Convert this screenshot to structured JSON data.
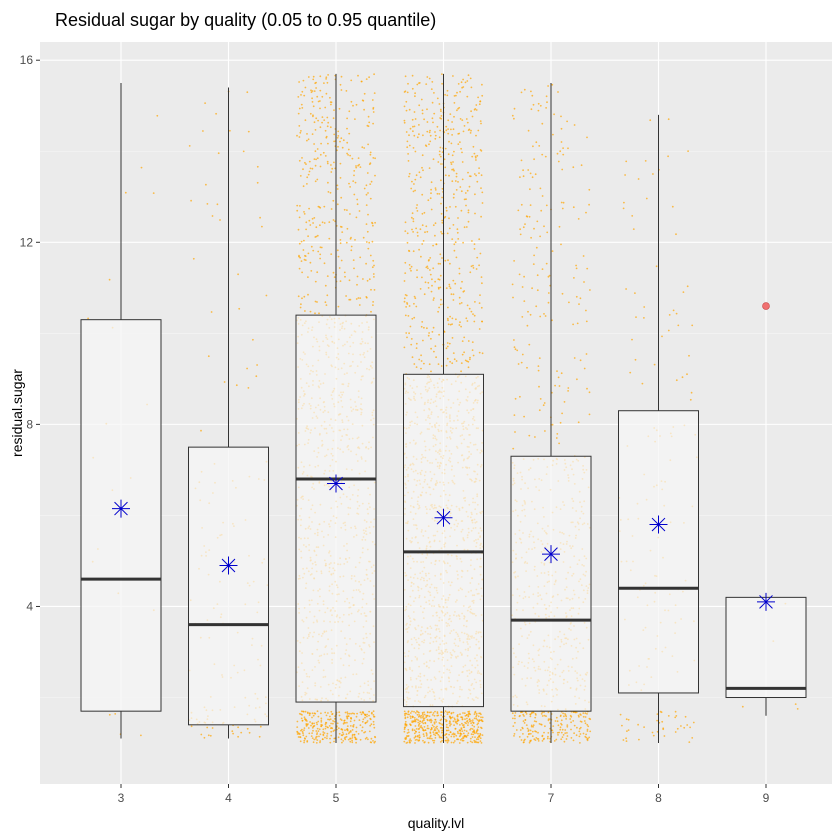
{
  "chart_data": {
    "type": "boxplot",
    "title": "Residual sugar by quality (0.05 to 0.95 quantile)",
    "xlabel": "quality.lvl",
    "ylabel": "residual.sugar",
    "categories": [
      "3",
      "4",
      "5",
      "6",
      "7",
      "8",
      "9"
    ],
    "ylim": [
      0.1,
      16.4
    ],
    "yticks": [
      4,
      8,
      12,
      16
    ],
    "ytick_labels": [
      "4",
      "8",
      "12",
      "16"
    ],
    "grid": true,
    "legend": "none",
    "boxes": [
      {
        "category": "3",
        "whisker_low": 1.1,
        "q1": 1.7,
        "median": 4.6,
        "q3": 10.3,
        "whisker_high": 15.5,
        "mean": 6.15
      },
      {
        "category": "4",
        "whisker_low": 1.1,
        "q1": 1.4,
        "median": 3.6,
        "q3": 7.5,
        "whisker_high": 15.4,
        "mean": 4.9
      },
      {
        "category": "5",
        "whisker_low": 1.0,
        "q1": 1.9,
        "median": 6.8,
        "q3": 10.4,
        "whisker_high": 15.7,
        "mean": 6.7
      },
      {
        "category": "6",
        "whisker_low": 1.0,
        "q1": 1.8,
        "median": 5.2,
        "q3": 9.1,
        "whisker_high": 15.7,
        "mean": 5.95
      },
      {
        "category": "7",
        "whisker_low": 1.0,
        "q1": 1.7,
        "median": 3.7,
        "q3": 7.3,
        "whisker_high": 15.5,
        "mean": 5.15
      },
      {
        "category": "8",
        "whisker_low": 1.0,
        "q1": 2.1,
        "median": 4.4,
        "q3": 8.3,
        "whisker_high": 14.8,
        "mean": 5.8
      },
      {
        "category": "9",
        "whisker_low": 1.6,
        "q1": 2.0,
        "median": 2.2,
        "q3": 4.2,
        "whisker_high": 4.2,
        "mean": 4.1
      }
    ],
    "outliers": [
      {
        "category": "9",
        "value": 10.6
      }
    ],
    "jitter_density": [
      {
        "category": "3",
        "n": 20
      },
      {
        "category": "4",
        "n": 150
      },
      {
        "category": "5",
        "n": 1400
      },
      {
        "category": "6",
        "n": 2000
      },
      {
        "category": "7",
        "n": 800
      },
      {
        "category": "8",
        "n": 160
      },
      {
        "category": "9",
        "n": 5
      }
    ],
    "colors": {
      "panel": "#ebebeb",
      "grid": "#ffffff",
      "box_fill": "#f5f5f5",
      "box_stroke": "#333333",
      "median": "#333333",
      "jitter": "#ffa500",
      "mean_marker": "#0000cc",
      "outlier": "#f07070"
    }
  }
}
